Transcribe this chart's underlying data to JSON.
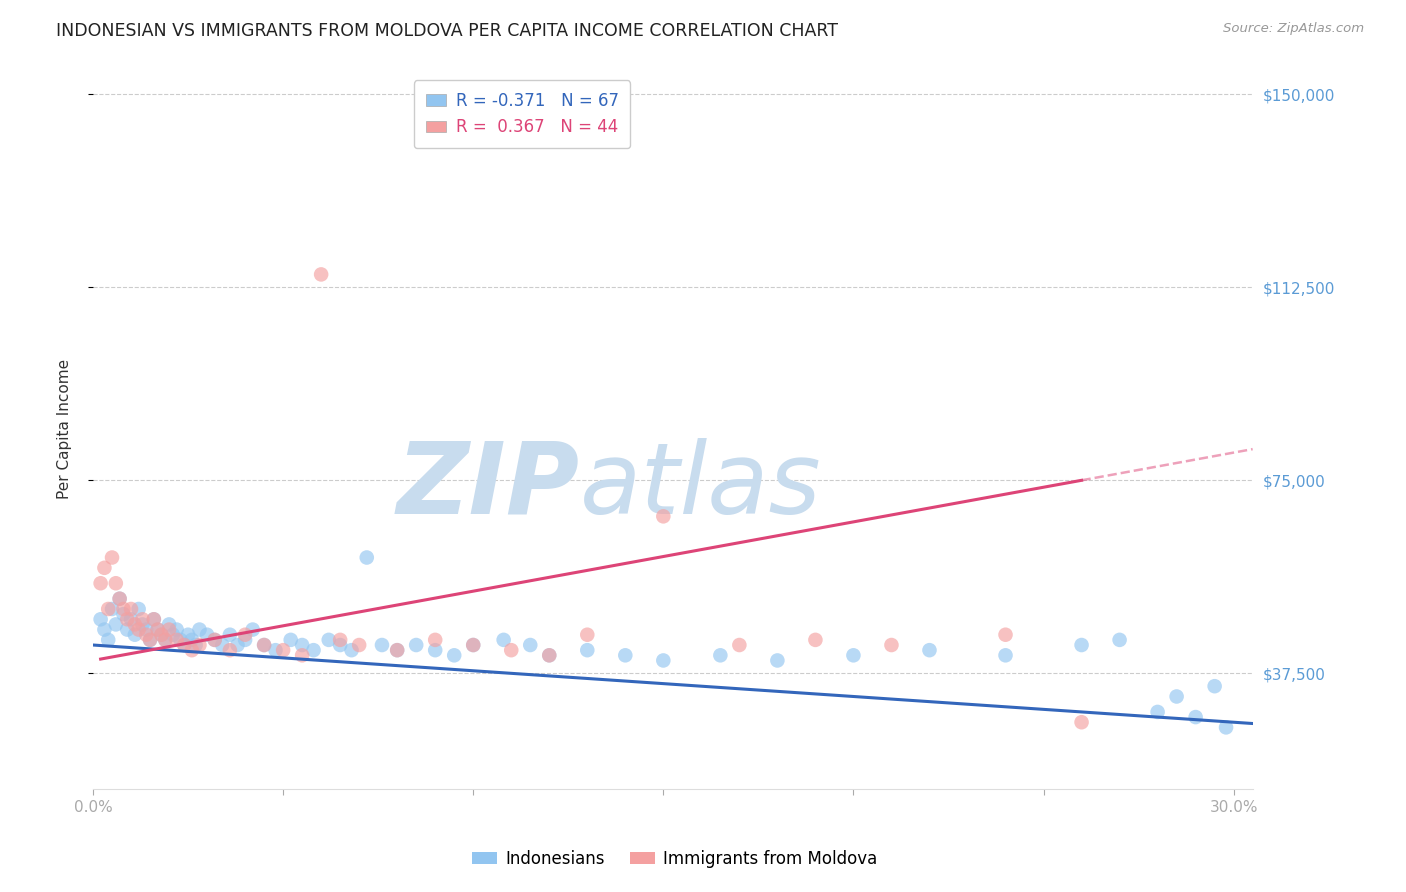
{
  "title": "INDONESIAN VS IMMIGRANTS FROM MOLDOVA PER CAPITA INCOME CORRELATION CHART",
  "source": "Source: ZipAtlas.com",
  "ylabel": "Per Capita Income",
  "xlim": [
    0.0,
    0.305
  ],
  "ylim": [
    15000,
    155000
  ],
  "yticks": [
    37500,
    75000,
    112500,
    150000
  ],
  "ytick_labels": [
    "$37,500",
    "$75,000",
    "$112,500",
    "$150,000"
  ],
  "blue_R": -0.371,
  "blue_N": 67,
  "pink_R": 0.367,
  "pink_N": 44,
  "blue_color": "#92C5F0",
  "pink_color": "#F4A0A0",
  "blue_line_color": "#3366BB",
  "pink_line_color": "#DD4477",
  "grid_color": "#CCCCCC",
  "background_color": "#FFFFFF",
  "watermark_text": "ZIPatlas",
  "watermark_color": "#C8DCEE",
  "legend_label_blue": "Indonesians",
  "legend_label_pink": "Immigrants from Moldova",
  "blue_x": [
    0.002,
    0.003,
    0.004,
    0.005,
    0.006,
    0.007,
    0.008,
    0.009,
    0.01,
    0.011,
    0.012,
    0.013,
    0.014,
    0.015,
    0.016,
    0.017,
    0.018,
    0.019,
    0.02,
    0.021,
    0.022,
    0.023,
    0.024,
    0.025,
    0.026,
    0.027,
    0.028,
    0.03,
    0.032,
    0.034,
    0.036,
    0.038,
    0.04,
    0.042,
    0.045,
    0.048,
    0.052,
    0.055,
    0.058,
    0.062,
    0.065,
    0.068,
    0.072,
    0.076,
    0.08,
    0.085,
    0.09,
    0.095,
    0.1,
    0.108,
    0.115,
    0.12,
    0.13,
    0.14,
    0.15,
    0.165,
    0.18,
    0.2,
    0.22,
    0.24,
    0.26,
    0.27,
    0.28,
    0.285,
    0.29,
    0.295,
    0.298
  ],
  "blue_y": [
    48000,
    46000,
    44000,
    50000,
    47000,
    52000,
    49000,
    46000,
    48000,
    45000,
    50000,
    47000,
    46000,
    44000,
    48000,
    46000,
    45000,
    44000,
    47000,
    45000,
    46000,
    44000,
    43000,
    45000,
    44000,
    43000,
    46000,
    45000,
    44000,
    43000,
    45000,
    43000,
    44000,
    46000,
    43000,
    42000,
    44000,
    43000,
    42000,
    44000,
    43000,
    42000,
    60000,
    43000,
    42000,
    43000,
    42000,
    41000,
    43000,
    44000,
    43000,
    41000,
    42000,
    41000,
    40000,
    41000,
    40000,
    41000,
    42000,
    41000,
    43000,
    44000,
    30000,
    33000,
    29000,
    35000,
    27000
  ],
  "pink_x": [
    0.002,
    0.003,
    0.004,
    0.005,
    0.006,
    0.007,
    0.008,
    0.009,
    0.01,
    0.011,
    0.012,
    0.013,
    0.014,
    0.015,
    0.016,
    0.017,
    0.018,
    0.019,
    0.02,
    0.022,
    0.024,
    0.026,
    0.028,
    0.032,
    0.036,
    0.04,
    0.045,
    0.05,
    0.055,
    0.06,
    0.065,
    0.07,
    0.08,
    0.09,
    0.1,
    0.11,
    0.12,
    0.13,
    0.15,
    0.17,
    0.19,
    0.21,
    0.24,
    0.26
  ],
  "pink_y": [
    55000,
    58000,
    50000,
    60000,
    55000,
    52000,
    50000,
    48000,
    50000,
    47000,
    46000,
    48000,
    45000,
    44000,
    48000,
    46000,
    45000,
    44000,
    46000,
    44000,
    43000,
    42000,
    43000,
    44000,
    42000,
    45000,
    43000,
    42000,
    41000,
    115000,
    44000,
    43000,
    42000,
    44000,
    43000,
    42000,
    41000,
    45000,
    68000,
    43000,
    44000,
    43000,
    45000,
    28000
  ],
  "pink_line_start_x": 0.002,
  "pink_line_end_solid_x": 0.26,
  "pink_line_end_dashed_x": 0.305,
  "blue_line_start_x": 0.0,
  "blue_line_end_x": 0.305
}
